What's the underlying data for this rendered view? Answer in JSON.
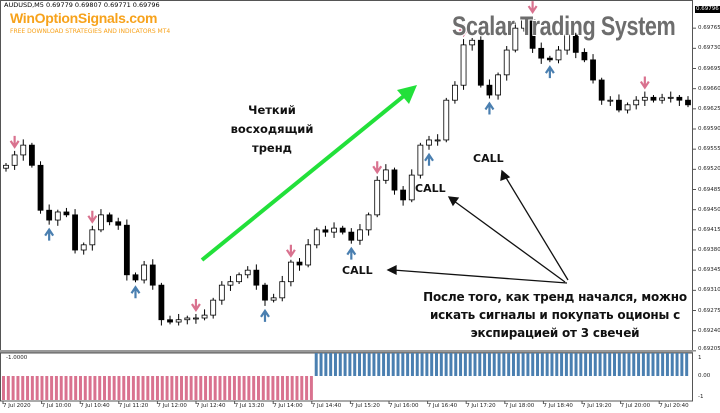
{
  "header": {
    "symbol_line": "AUDUSD,M5  0.69779 0.69807 0.69771 0.69796",
    "brand": "WinOptionSignals.com",
    "brand_subtitle": "FREE DOWNLOAD STRATEGIES AND INDICATORS MT4",
    "system_title": "Scalar Trading System"
  },
  "annotations": {
    "trend_note": [
      "Четкий",
      "восходящий",
      "тренд"
    ],
    "after_note": [
      "После того, как тренд начался, можно",
      "искать сигналы и покупать оционы с",
      "экспирацией от 3 свечей"
    ],
    "call_labels": [
      "CALL",
      "CALL",
      "CALL"
    ]
  },
  "colors": {
    "bull_body": "#ffffff",
    "bear_body": "#000000",
    "sell_arrow": "#d9728f",
    "buy_arrow": "#4a7fb0",
    "trend_arrow": "#22e03a",
    "indicator_negative": "#d9728f",
    "indicator_positive": "#4a7fb0"
  },
  "chart_data": {
    "type": "candlestick",
    "symbol": "AUDUSD",
    "timeframe": "M5",
    "current_price": "0.69796",
    "closes": [
      0.69527,
      0.69545,
      0.69562,
      0.69527,
      0.69449,
      0.69432,
      0.69446,
      0.69441,
      0.6938,
      0.69389,
      0.69415,
      0.69441,
      0.69429,
      0.69423,
      0.69337,
      0.69328,
      0.69354,
      0.69319,
      0.69259,
      0.69255,
      0.69259,
      0.69262,
      0.69262,
      0.69267,
      0.69293,
      0.69319,
      0.69325,
      0.69337,
      0.69345,
      0.69319,
      0.69293,
      0.69297,
      0.69325,
      0.69359,
      0.69354,
      0.69389,
      0.69415,
      0.69411,
      0.69418,
      0.69411,
      0.69397,
      0.69415,
      0.69441,
      0.69501,
      0.69519,
      0.69484,
      0.69467,
      0.6951,
      0.69562,
      0.69571,
      0.69571,
      0.6964,
      0.69666,
      0.69736,
      0.69744,
      0.69666,
      0.69649,
      0.69684,
      0.69727,
      0.69765,
      0.69779,
      0.6973,
      0.69713,
      0.6971,
      0.69727,
      0.69753,
      0.69723,
      0.6971,
      0.69675,
      0.6964,
      0.6964,
      0.69623,
      0.69632,
      0.6964,
      0.69645,
      0.6964,
      0.69644,
      0.69645,
      0.6964,
      0.69632
    ],
    "y_ticks": [
      "0.69765",
      "0.69730",
      "0.69695",
      "0.69660",
      "0.69625",
      "0.69590",
      "0.69555",
      "0.69520",
      "0.69485",
      "0.69450",
      "0.69415",
      "0.69380",
      "0.69345",
      "0.69310",
      "0.69275",
      "0.69240",
      "0.69205"
    ],
    "ylim": [
      0.69203,
      0.698
    ],
    "x_ticks": [
      "7 Jul 2020",
      "7 Jul 10:00",
      "7 Jul 10:40",
      "7 Jul 11:20",
      "7 Jul 12:00",
      "7 Jul 12:40",
      "7 Jul 13:20",
      "7 Jul 14:00",
      "7 Jul 14:40",
      "7 Jul 15:20",
      "7 Jul 16:00",
      "7 Jul 16:40",
      "7 Jul 17:20",
      "7 Jul 18:00",
      "7 Jul 18:40",
      "7 Jul 19:20",
      "7 Jul 20:00",
      "7 Jul 20:40"
    ],
    "sell_signal_bars": [
      1,
      10,
      22,
      33,
      43,
      53,
      61,
      74
    ],
    "buy_signal_bars": [
      5,
      15,
      30,
      40,
      49,
      56,
      63
    ],
    "indicator": {
      "label": "-1.0000",
      "y_ticks": [
        "1",
        "0.00",
        "-1"
      ],
      "segments": [
        {
          "value": -1,
          "count": 65
        },
        {
          "value": 1,
          "count": 78
        }
      ]
    }
  }
}
